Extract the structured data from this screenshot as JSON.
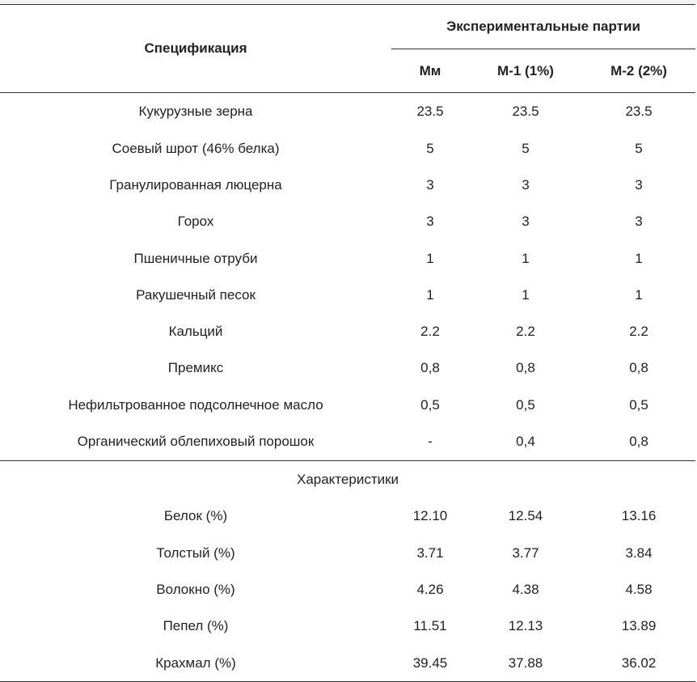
{
  "header": {
    "spec_label": "Спецификация",
    "group_label": "Экспериментальные партии",
    "columns": [
      "Мм",
      "М-1 (1%)",
      "М-2 (2%)"
    ]
  },
  "ingredients": [
    {
      "name": "Кукурузные зерна",
      "values": [
        "23.5",
        "23.5",
        "23.5"
      ]
    },
    {
      "name": "Соевый шрот (46% белка)",
      "values": [
        "5",
        "5",
        "5"
      ]
    },
    {
      "name": "Гранулированная люцерна",
      "values": [
        "3",
        "3",
        "3"
      ]
    },
    {
      "name": "Горох",
      "values": [
        "3",
        "3",
        "3"
      ]
    },
    {
      "name": "Пшеничные отруби",
      "values": [
        "1",
        "1",
        "1"
      ]
    },
    {
      "name": "Ракушечный песок",
      "values": [
        "1",
        "1",
        "1"
      ]
    },
    {
      "name": "Кальций",
      "values": [
        "2.2",
        "2.2",
        "2.2"
      ]
    },
    {
      "name": "Премикс",
      "values": [
        "0,8",
        "0,8",
        "0,8"
      ]
    },
    {
      "name": "Нефильтрованное подсолнечное масло",
      "values": [
        "0,5",
        "0,5",
        "0,5"
      ]
    },
    {
      "name": "Органический облепиховый порошок",
      "values": [
        "-",
        "0,4",
        "0,8"
      ]
    }
  ],
  "characteristics_label": "Характеристики",
  "characteristics": [
    {
      "name": "Белок (%)",
      "values": [
        "12.10",
        "12.54",
        "13.16"
      ]
    },
    {
      "name": "Толстый (%)",
      "values": [
        "3.71",
        "3.77",
        "3.84"
      ]
    },
    {
      "name": "Волокно (%)",
      "values": [
        "4.26",
        "4.38",
        "4.58"
      ]
    },
    {
      "name": "Пепел (%)",
      "values": [
        "11.51",
        "12.13",
        "13.89"
      ]
    },
    {
      "name": "Крахмал (%)",
      "values": [
        "39.45",
        "37.88",
        "36.02"
      ]
    }
  ]
}
